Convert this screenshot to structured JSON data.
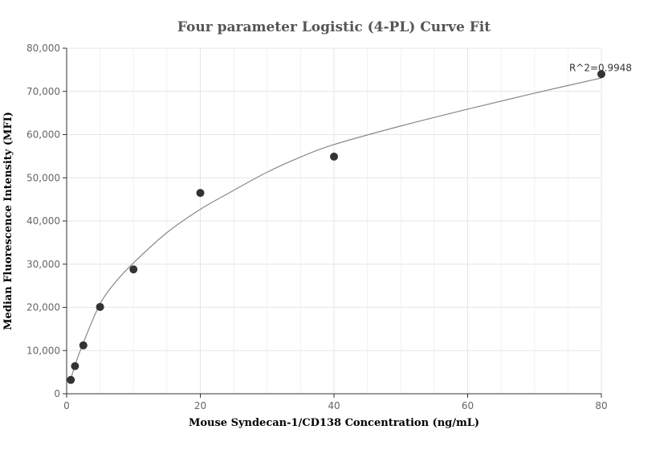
{
  "chart_data": {
    "type": "scatter",
    "title": "Four parameter Logistic (4-PL) Curve Fit",
    "xlabel": "Mouse Syndecan-1/CD138 Concentration (ng/mL)",
    "ylabel": "Median Fluorescence Intensity (MFI)",
    "xlim": [
      0,
      80
    ],
    "ylim": [
      0,
      80000
    ],
    "x_ticks": [
      0,
      20,
      40,
      60,
      80
    ],
    "x_tick_labels": [
      "0",
      "20",
      "40",
      "60",
      "80"
    ],
    "y_ticks": [
      0,
      10000,
      20000,
      30000,
      40000,
      50000,
      60000,
      70000,
      80000
    ],
    "y_tick_labels": [
      "0",
      "10,000",
      "20,000",
      "30,000",
      "40,000",
      "50,000",
      "60,000",
      "70,000",
      "80,000"
    ],
    "grid": true,
    "series": [
      {
        "type": "scatter",
        "x": [
          0.625,
          1.25,
          2.5,
          5,
          10,
          20,
          40,
          80
        ],
        "y": [
          3200,
          6400,
          11200,
          20100,
          28800,
          46500,
          54900,
          74000
        ]
      },
      {
        "type": "line",
        "x": [
          0.625,
          1.25,
          2.5,
          5,
          7.5,
          10,
          15,
          20,
          25,
          30,
          35,
          40,
          50,
          60,
          70,
          80
        ],
        "y": [
          3400,
          6600,
          11800,
          20800,
          26200,
          30300,
          37300,
          42700,
          47100,
          51300,
          54800,
          57700,
          62000,
          65900,
          69600,
          73100
        ]
      }
    ],
    "annotation": {
      "text": "R^2=0.9948",
      "x": 80,
      "y": 74000
    },
    "colors": {
      "points": "#333333",
      "curve": "#888888",
      "grid": "#e6e6e6"
    }
  }
}
